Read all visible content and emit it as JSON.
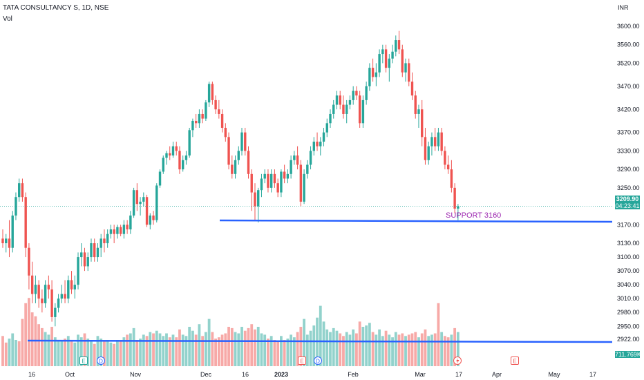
{
  "header": {
    "symbol": "TATA CONSULTANCY S, 1D, NSE",
    "volume_label": "Vol"
  },
  "axis": {
    "currency": "INR",
    "price_ticks": [
      "3600.00",
      "3560.00",
      "3520.00",
      "3470.00",
      "3420.00",
      "3370.00",
      "3330.00",
      "3290.00",
      "3250.00",
      "3209.90",
      "3170.00",
      "3130.00",
      "3100.00",
      "3070.00",
      "3040.00",
      "3010.00",
      "2980.00",
      "2950.00",
      "2922.00"
    ],
    "date_ticks": [
      "16",
      "Oct",
      "Nov",
      "Dec",
      "16",
      "2023",
      "Feb",
      "Mar",
      "17",
      "Apr",
      "May",
      "17"
    ]
  },
  "last_price": {
    "value": "3209.90",
    "countdown": "04:23:41",
    "color": "#26a69a"
  },
  "volume_value": {
    "value": "711.769K",
    "color": "#26a69a"
  },
  "annotations": {
    "support_label": "SUPPORT 3160"
  },
  "event_markers": [
    "E",
    "D",
    "E",
    "D",
    "E"
  ],
  "colors": {
    "up": "#26a69a",
    "down": "#ef5350",
    "support_line": "#2962ff",
    "annotation_text": "#9c27b0"
  },
  "chart_data": {
    "type": "candlestick",
    "title": "TATA CONSULTANCY S, 1D, NSE",
    "ylabel": "INR",
    "ylim": [
      2900,
      3620
    ],
    "ohlc": [
      [
        3140,
        3160,
        3120,
        3130
      ],
      [
        3130,
        3150,
        3110,
        3140
      ],
      [
        3140,
        3180,
        3100,
        3120
      ],
      [
        3120,
        3200,
        3110,
        3190
      ],
      [
        3190,
        3240,
        3180,
        3230
      ],
      [
        3230,
        3270,
        3220,
        3260
      ],
      [
        3260,
        3270,
        3220,
        3230
      ],
      [
        3230,
        3240,
        3100,
        3120
      ],
      [
        3120,
        3130,
        3030,
        3060
      ],
      [
        3060,
        3090,
        3000,
        3020
      ],
      [
        3020,
        3060,
        3000,
        3040
      ],
      [
        3040,
        3050,
        2990,
        3010
      ],
      [
        3010,
        3030,
        2980,
        3000
      ],
      [
        3000,
        3050,
        2990,
        3040
      ],
      [
        3040,
        3060,
        3010,
        3030
      ],
      [
        3030,
        3050,
        2960,
        2970
      ],
      [
        2970,
        3000,
        2950,
        2990
      ],
      [
        2990,
        3020,
        2980,
        3010
      ],
      [
        3010,
        3040,
        3000,
        3020
      ],
      [
        3020,
        3050,
        3000,
        3010
      ],
      [
        3010,
        3060,
        3000,
        3050
      ],
      [
        3050,
        3070,
        3020,
        3030
      ],
      [
        3030,
        3060,
        3010,
        3040
      ],
      [
        3040,
        3110,
        3030,
        3100
      ],
      [
        3100,
        3130,
        3080,
        3110
      ],
      [
        3110,
        3120,
        3070,
        3080
      ],
      [
        3080,
        3110,
        3070,
        3100
      ],
      [
        3100,
        3140,
        3090,
        3130
      ],
      [
        3130,
        3140,
        3090,
        3100
      ],
      [
        3100,
        3130,
        3090,
        3120
      ],
      [
        3120,
        3150,
        3100,
        3140
      ],
      [
        3140,
        3160,
        3110,
        3130
      ],
      [
        3130,
        3160,
        3120,
        3150
      ],
      [
        3150,
        3170,
        3140,
        3160
      ],
      [
        3160,
        3170,
        3130,
        3150
      ],
      [
        3150,
        3170,
        3140,
        3165
      ],
      [
        3165,
        3170,
        3145,
        3150
      ],
      [
        3150,
        3180,
        3140,
        3170
      ],
      [
        3170,
        3180,
        3150,
        3160
      ],
      [
        3160,
        3200,
        3150,
        3190
      ],
      [
        3190,
        3250,
        3185,
        3245
      ],
      [
        3245,
        3260,
        3200,
        3215
      ],
      [
        3215,
        3230,
        3190,
        3220
      ],
      [
        3220,
        3240,
        3210,
        3230
      ],
      [
        3230,
        3235,
        3165,
        3170
      ],
      [
        3170,
        3195,
        3160,
        3190
      ],
      [
        3190,
        3200,
        3170,
        3180
      ],
      [
        3180,
        3260,
        3175,
        3255
      ],
      [
        3255,
        3290,
        3250,
        3285
      ],
      [
        3285,
        3320,
        3280,
        3315
      ],
      [
        3315,
        3330,
        3300,
        3325
      ],
      [
        3325,
        3340,
        3310,
        3320
      ],
      [
        3320,
        3350,
        3315,
        3340
      ],
      [
        3340,
        3350,
        3320,
        3330
      ],
      [
        3330,
        3340,
        3280,
        3290
      ],
      [
        3290,
        3320,
        3285,
        3310
      ],
      [
        3310,
        3330,
        3300,
        3320
      ],
      [
        3320,
        3380,
        3315,
        3375
      ],
      [
        3375,
        3400,
        3360,
        3395
      ],
      [
        3395,
        3410,
        3380,
        3390
      ],
      [
        3390,
        3420,
        3380,
        3410
      ],
      [
        3410,
        3420,
        3390,
        3400
      ],
      [
        3400,
        3440,
        3395,
        3435
      ],
      [
        3435,
        3480,
        3425,
        3475
      ],
      [
        3475,
        3480,
        3430,
        3440
      ],
      [
        3440,
        3450,
        3410,
        3420
      ],
      [
        3420,
        3440,
        3400,
        3410
      ],
      [
        3410,
        3420,
        3370,
        3380
      ],
      [
        3380,
        3390,
        3350,
        3360
      ],
      [
        3360,
        3370,
        3290,
        3300
      ],
      [
        3300,
        3320,
        3270,
        3280
      ],
      [
        3280,
        3320,
        3270,
        3310
      ],
      [
        3310,
        3340,
        3300,
        3330
      ],
      [
        3330,
        3380,
        3320,
        3370
      ],
      [
        3370,
        3380,
        3320,
        3330
      ],
      [
        3330,
        3340,
        3270,
        3280
      ],
      [
        3280,
        3290,
        3200,
        3240
      ],
      [
        3240,
        3260,
        3180,
        3210
      ],
      [
        3210,
        3250,
        3175,
        3245
      ],
      [
        3245,
        3280,
        3230,
        3270
      ],
      [
        3270,
        3290,
        3260,
        3280
      ],
      [
        3280,
        3290,
        3240,
        3250
      ],
      [
        3250,
        3290,
        3240,
        3280
      ],
      [
        3280,
        3290,
        3250,
        3260
      ],
      [
        3260,
        3270,
        3230,
        3240
      ],
      [
        3240,
        3290,
        3230,
        3285
      ],
      [
        3285,
        3300,
        3260,
        3270
      ],
      [
        3270,
        3290,
        3260,
        3280
      ],
      [
        3280,
        3320,
        3270,
        3310
      ],
      [
        3310,
        3330,
        3300,
        3320
      ],
      [
        3320,
        3340,
        3290,
        3300
      ],
      [
        3300,
        3310,
        3210,
        3220
      ],
      [
        3220,
        3290,
        3215,
        3280
      ],
      [
        3280,
        3310,
        3270,
        3300
      ],
      [
        3300,
        3340,
        3290,
        3330
      ],
      [
        3330,
        3360,
        3320,
        3350
      ],
      [
        3350,
        3370,
        3330,
        3340
      ],
      [
        3340,
        3360,
        3320,
        3350
      ],
      [
        3350,
        3380,
        3340,
        3370
      ],
      [
        3370,
        3400,
        3360,
        3390
      ],
      [
        3390,
        3420,
        3380,
        3410
      ],
      [
        3410,
        3440,
        3400,
        3430
      ],
      [
        3430,
        3460,
        3420,
        3450
      ],
      [
        3450,
        3460,
        3420,
        3430
      ],
      [
        3430,
        3450,
        3400,
        3410
      ],
      [
        3410,
        3440,
        3390,
        3430
      ],
      [
        3430,
        3450,
        3420,
        3440
      ],
      [
        3440,
        3470,
        3430,
        3460
      ],
      [
        3460,
        3470,
        3440,
        3450
      ],
      [
        3450,
        3460,
        3380,
        3390
      ],
      [
        3390,
        3450,
        3380,
        3440
      ],
      [
        3440,
        3480,
        3430,
        3470
      ],
      [
        3470,
        3520,
        3460,
        3510
      ],
      [
        3510,
        3530,
        3480,
        3490
      ],
      [
        3490,
        3520,
        3470,
        3500
      ],
      [
        3500,
        3550,
        3490,
        3540
      ],
      [
        3540,
        3560,
        3520,
        3550
      ],
      [
        3550,
        3560,
        3500,
        3510
      ],
      [
        3510,
        3540,
        3480,
        3530
      ],
      [
        3530,
        3560,
        3520,
        3545
      ],
      [
        3545,
        3580,
        3535,
        3570
      ],
      [
        3570,
        3590,
        3540,
        3550
      ],
      [
        3550,
        3560,
        3490,
        3500
      ],
      [
        3500,
        3530,
        3480,
        3520
      ],
      [
        3520,
        3530,
        3470,
        3480
      ],
      [
        3480,
        3500,
        3440,
        3450
      ],
      [
        3450,
        3460,
        3400,
        3410
      ],
      [
        3410,
        3430,
        3380,
        3420
      ],
      [
        3420,
        3440,
        3340,
        3360
      ],
      [
        3360,
        3380,
        3300,
        3310
      ],
      [
        3310,
        3350,
        3300,
        3340
      ],
      [
        3340,
        3370,
        3320,
        3360
      ],
      [
        3360,
        3380,
        3330,
        3340
      ],
      [
        3340,
        3380,
        3330,
        3370
      ],
      [
        3370,
        3380,
        3320,
        3330
      ],
      [
        3330,
        3340,
        3290,
        3300
      ],
      [
        3300,
        3320,
        3280,
        3290
      ],
      [
        3290,
        3310,
        3240,
        3250
      ],
      [
        3250,
        3260,
        3195,
        3205
      ],
      [
        3205,
        3215,
        3180,
        3209.9
      ]
    ],
    "volume": [
      [
        2.3,
        "down"
      ],
      [
        1.8,
        "down"
      ],
      [
        2.1,
        "up"
      ],
      [
        2.5,
        "up"
      ],
      [
        2.0,
        "up"
      ],
      [
        1.9,
        "down"
      ],
      [
        3.6,
        "down"
      ],
      [
        4.8,
        "down"
      ],
      [
        5.2,
        "down"
      ],
      [
        4.1,
        "down"
      ],
      [
        3.8,
        "down"
      ],
      [
        3.2,
        "down"
      ],
      [
        2.9,
        "down"
      ],
      [
        2.6,
        "up"
      ],
      [
        2.4,
        "up"
      ],
      [
        3.0,
        "down"
      ],
      [
        2.2,
        "up"
      ],
      [
        2.0,
        "up"
      ],
      [
        1.9,
        "up"
      ],
      [
        2.1,
        "down"
      ],
      [
        2.3,
        "up"
      ],
      [
        2.0,
        "down"
      ],
      [
        1.8,
        "up"
      ],
      [
        2.4,
        "up"
      ],
      [
        2.2,
        "up"
      ],
      [
        2.5,
        "down"
      ],
      [
        2.1,
        "up"
      ],
      [
        2.0,
        "up"
      ],
      [
        1.7,
        "down"
      ],
      [
        2.3,
        "up"
      ],
      [
        2.1,
        "up"
      ],
      [
        1.9,
        "down"
      ],
      [
        2.0,
        "up"
      ],
      [
        1.8,
        "up"
      ],
      [
        1.7,
        "down"
      ],
      [
        2.0,
        "up"
      ],
      [
        1.9,
        "down"
      ],
      [
        2.2,
        "up"
      ],
      [
        2.4,
        "down"
      ],
      [
        2.5,
        "up"
      ],
      [
        2.9,
        "up"
      ],
      [
        2.0,
        "down"
      ],
      [
        2.1,
        "up"
      ],
      [
        2.4,
        "up"
      ],
      [
        2.3,
        "down"
      ],
      [
        2.6,
        "up"
      ],
      [
        2.5,
        "down"
      ],
      [
        2.7,
        "up"
      ],
      [
        2.5,
        "up"
      ],
      [
        2.3,
        "up"
      ],
      [
        2.5,
        "up"
      ],
      [
        2.2,
        "down"
      ],
      [
        2.4,
        "up"
      ],
      [
        2.2,
        "down"
      ],
      [
        2.8,
        "down"
      ],
      [
        2.4,
        "up"
      ],
      [
        2.3,
        "up"
      ],
      [
        3.0,
        "up"
      ],
      [
        2.7,
        "up"
      ],
      [
        2.4,
        "down"
      ],
      [
        3.2,
        "up"
      ],
      [
        2.3,
        "down"
      ],
      [
        2.6,
        "up"
      ],
      [
        3.6,
        "up"
      ],
      [
        2.6,
        "down"
      ],
      [
        2.1,
        "down"
      ],
      [
        2.2,
        "down"
      ],
      [
        2.4,
        "down"
      ],
      [
        2.5,
        "down"
      ],
      [
        3.0,
        "down"
      ],
      [
        2.9,
        "down"
      ],
      [
        2.6,
        "up"
      ],
      [
        2.5,
        "up"
      ],
      [
        3.0,
        "up"
      ],
      [
        2.7,
        "down"
      ],
      [
        2.9,
        "down"
      ],
      [
        3.2,
        "down"
      ],
      [
        2.8,
        "down"
      ],
      [
        3.0,
        "up"
      ],
      [
        2.5,
        "up"
      ],
      [
        2.4,
        "up"
      ],
      [
        2.1,
        "down"
      ],
      [
        2.3,
        "up"
      ],
      [
        2.0,
        "down"
      ],
      [
        1.9,
        "down"
      ],
      [
        2.3,
        "up"
      ],
      [
        2.0,
        "down"
      ],
      [
        2.1,
        "up"
      ],
      [
        2.4,
        "up"
      ],
      [
        2.2,
        "up"
      ],
      [
        2.6,
        "down"
      ],
      [
        3.0,
        "down"
      ],
      [
        3.6,
        "up"
      ],
      [
        2.4,
        "up"
      ],
      [
        2.7,
        "up"
      ],
      [
        3.1,
        "up"
      ],
      [
        3.7,
        "up"
      ],
      [
        4.6,
        "up"
      ],
      [
        3.4,
        "up"
      ],
      [
        2.8,
        "up"
      ],
      [
        2.6,
        "up"
      ],
      [
        2.9,
        "up"
      ],
      [
        2.7,
        "up"
      ],
      [
        2.5,
        "down"
      ],
      [
        2.3,
        "down"
      ],
      [
        2.6,
        "up"
      ],
      [
        2.4,
        "up"
      ],
      [
        2.8,
        "up"
      ],
      [
        2.5,
        "down"
      ],
      [
        3.4,
        "down"
      ],
      [
        3.0,
        "up"
      ],
      [
        3.1,
        "up"
      ],
      [
        3.3,
        "up"
      ],
      [
        2.6,
        "down"
      ],
      [
        2.4,
        "up"
      ],
      [
        2.8,
        "up"
      ],
      [
        2.3,
        "up"
      ],
      [
        2.7,
        "down"
      ],
      [
        2.4,
        "up"
      ],
      [
        2.2,
        "up"
      ],
      [
        2.6,
        "up"
      ],
      [
        2.4,
        "down"
      ],
      [
        2.5,
        "down"
      ],
      [
        2.3,
        "up"
      ],
      [
        2.4,
        "down"
      ],
      [
        2.5,
        "down"
      ],
      [
        2.6,
        "down"
      ],
      [
        2.2,
        "up"
      ],
      [
        2.5,
        "down"
      ],
      [
        2.8,
        "down"
      ],
      [
        2.3,
        "up"
      ],
      [
        2.4,
        "up"
      ],
      [
        2.5,
        "down"
      ],
      [
        4.8,
        "down"
      ],
      [
        2.6,
        "up"
      ],
      [
        2.3,
        "down"
      ],
      [
        2.2,
        "down"
      ],
      [
        2.4,
        "up"
      ],
      [
        2.9,
        "down"
      ],
      [
        2.6,
        "up"
      ]
    ],
    "support_levels": [
      {
        "label": "SUPPORT 3160",
        "price": 3160
      },
      {
        "label": "",
        "price": 2920
      }
    ]
  }
}
